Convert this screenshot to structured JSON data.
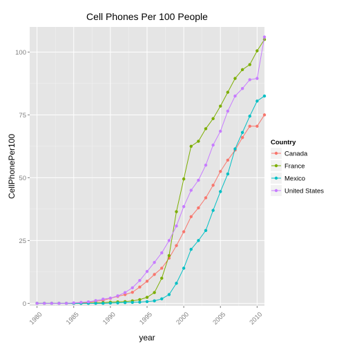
{
  "chart_data": {
    "type": "line",
    "title": "Cell Phones Per 100 People",
    "xlabel": "year",
    "ylabel": "CellPhonePer100",
    "xlim": [
      1979,
      2011
    ],
    "ylim": [
      -1,
      110
    ],
    "x_ticks": [
      1980,
      1985,
      1990,
      1995,
      2000,
      2005,
      2010
    ],
    "y_ticks": [
      0,
      25,
      50,
      75,
      100
    ],
    "grid": true,
    "legend": {
      "title": "Country",
      "placement": "right"
    },
    "x": [
      1980,
      1981,
      1982,
      1983,
      1984,
      1985,
      1986,
      1987,
      1988,
      1989,
      1990,
      1991,
      1992,
      1993,
      1994,
      1995,
      1996,
      1997,
      1998,
      1999,
      2000,
      2001,
      2002,
      2003,
      2004,
      2005,
      2006,
      2007,
      2008,
      2009,
      2010,
      2011
    ],
    "series": [
      {
        "name": "Canada",
        "color": "#F8766D",
        "values": [
          0,
          0,
          0,
          0,
          0,
          0.1,
          0.2,
          0.4,
          0.8,
          1.2,
          2,
          2.8,
          3.5,
          4.4,
          6.5,
          8.8,
          11.5,
          14,
          18,
          23,
          28.5,
          34.5,
          38,
          42,
          47,
          52.5,
          57,
          61,
          66,
          70.5,
          70.5,
          75
        ]
      },
      {
        "name": "France",
        "color": "#7CAE00",
        "values": [
          0,
          0,
          0,
          0,
          0,
          0,
          0,
          0.1,
          0.2,
          0.3,
          0.5,
          0.6,
          0.7,
          1,
          1.5,
          2.4,
          4.3,
          10,
          19,
          36.5,
          49.5,
          62.5,
          64.5,
          69.5,
          73.5,
          78.5,
          84,
          89.5,
          93,
          95,
          100.5,
          105
        ]
      },
      {
        "name": "Mexico",
        "color": "#00BFC4",
        "values": [
          0,
          0,
          0,
          0,
          0,
          0,
          0,
          0,
          0,
          0,
          0.1,
          0.2,
          0.3,
          0.4,
          0.5,
          0.7,
          1,
          1.8,
          3.5,
          8,
          14,
          21.5,
          25,
          29,
          37,
          44.5,
          51.5,
          61.5,
          68,
          74.5,
          80.5,
          82.5
        ]
      },
      {
        "name": "United States",
        "color": "#C77CFF",
        "values": [
          0,
          0,
          0,
          0,
          0,
          0.2,
          0.4,
          0.6,
          1.1,
          1.7,
          2.1,
          3,
          4.3,
          6.2,
          9.1,
          12.7,
          16.3,
          20.1,
          25,
          30.8,
          38.5,
          45,
          49,
          55,
          63,
          68.5,
          76.5,
          82.5,
          85.5,
          89,
          89.5,
          106
        ]
      }
    ]
  }
}
